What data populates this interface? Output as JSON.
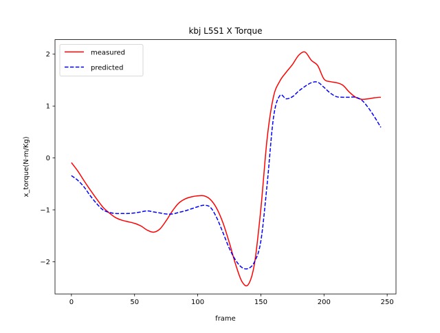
{
  "chart_data": {
    "type": "line",
    "title": "kbj L5S1 X Torque",
    "xlabel": "frame",
    "ylabel": "x_torque(N·m/Kg)",
    "xlim": [
      -13,
      257
    ],
    "ylim": [
      -2.62,
      2.28
    ],
    "xticks": [
      0,
      50,
      100,
      150,
      200,
      250
    ],
    "yticks": [
      -2,
      -1,
      0,
      1,
      2
    ],
    "ytick_labels": [
      "−2",
      "−1",
      "0",
      "1",
      "2"
    ],
    "grid": false,
    "legend_position": "top-left",
    "series": [
      {
        "name": "measured",
        "color": "#ff0000",
        "style": "solid",
        "x": [
          0,
          5,
          10,
          15,
          20,
          25,
          30,
          35,
          40,
          45,
          50,
          55,
          60,
          65,
          70,
          75,
          80,
          85,
          90,
          95,
          100,
          105,
          110,
          115,
          120,
          125,
          130,
          135,
          140,
          145,
          150,
          155,
          160,
          165,
          170,
          175,
          180,
          185,
          190,
          195,
          200,
          205,
          210,
          215,
          220,
          225,
          230,
          235,
          240,
          245
        ],
        "y": [
          -0.09,
          -0.25,
          -0.44,
          -0.62,
          -0.79,
          -0.95,
          -1.06,
          -1.15,
          -1.2,
          -1.23,
          -1.26,
          -1.31,
          -1.39,
          -1.43,
          -1.37,
          -1.21,
          -1.02,
          -0.87,
          -0.79,
          -0.75,
          -0.73,
          -0.73,
          -0.8,
          -0.97,
          -1.25,
          -1.63,
          -2.05,
          -2.38,
          -2.44,
          -2.03,
          -0.98,
          0.38,
          1.18,
          1.48,
          1.65,
          1.8,
          1.98,
          2.04,
          1.88,
          1.78,
          1.52,
          1.47,
          1.45,
          1.4,
          1.27,
          1.17,
          1.13,
          1.14,
          1.16,
          1.17
        ]
      },
      {
        "name": "predicted",
        "color": "#0000ff",
        "style": "dashed",
        "x": [
          0,
          5,
          10,
          15,
          20,
          25,
          30,
          35,
          40,
          45,
          50,
          55,
          60,
          65,
          70,
          75,
          80,
          85,
          90,
          95,
          100,
          105,
          110,
          115,
          120,
          125,
          130,
          135,
          140,
          145,
          150,
          155,
          160,
          165,
          170,
          175,
          180,
          185,
          190,
          195,
          200,
          205,
          210,
          215,
          220,
          225,
          230,
          235,
          240,
          245
        ],
        "y": [
          -0.34,
          -0.43,
          -0.56,
          -0.73,
          -0.88,
          -1.0,
          -1.05,
          -1.07,
          -1.07,
          -1.07,
          -1.06,
          -1.04,
          -1.02,
          -1.04,
          -1.06,
          -1.08,
          -1.08,
          -1.05,
          -1.02,
          -0.98,
          -0.94,
          -0.91,
          -0.95,
          -1.15,
          -1.44,
          -1.74,
          -1.97,
          -2.11,
          -2.13,
          -2.0,
          -1.6,
          -0.5,
          0.78,
          1.2,
          1.14,
          1.18,
          1.29,
          1.38,
          1.45,
          1.46,
          1.36,
          1.25,
          1.18,
          1.17,
          1.17,
          1.17,
          1.11,
          0.97,
          0.79,
          0.59
        ]
      }
    ]
  }
}
